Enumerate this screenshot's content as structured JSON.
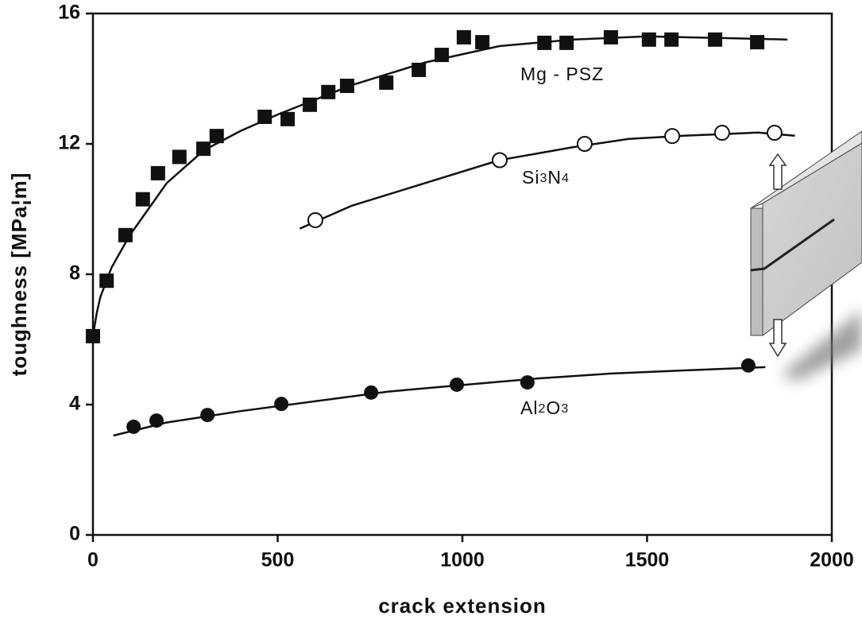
{
  "chart_data": {
    "type": "scatter",
    "x_label": "crack extension",
    "y_label": "toughness [MPa¦m]",
    "xlim": [
      0,
      2000
    ],
    "ylim": [
      0,
      16
    ],
    "xticks": [
      0,
      500,
      1000,
      1500,
      2000
    ],
    "yticks": [
      0,
      4,
      8,
      12,
      16
    ],
    "grid": false,
    "series": [
      {
        "name": "Mg - PSZ",
        "marker": "square",
        "color": "#111111",
        "x": [
          0,
          37,
          88,
          135,
          176,
          234,
          299,
          335,
          465,
          527,
          587,
          637,
          688,
          794,
          882,
          944,
          1004,
          1054,
          1222,
          1282,
          1402,
          1505,
          1566,
          1684,
          1798
        ],
        "values": [
          6.1,
          7.8,
          9.2,
          10.3,
          11.1,
          11.6,
          11.85,
          12.24,
          12.83,
          12.76,
          13.2,
          13.59,
          13.78,
          13.88,
          14.27,
          14.73,
          15.27,
          15.12,
          15.1,
          15.1,
          15.27,
          15.2,
          15.2,
          15.2,
          15.12
        ],
        "fit": {
          "x": [
            0,
            10,
            20,
            50,
            100,
            200,
            300,
            400,
            500,
            700,
            900,
            1100,
            1300,
            1500,
            1880
          ],
          "values": [
            6.1,
            6.8,
            7.3,
            8.2,
            9.2,
            10.8,
            11.8,
            12.4,
            12.9,
            13.8,
            14.5,
            15.0,
            15.2,
            15.3,
            15.2
          ]
        }
      },
      {
        "name": "Si3N4",
        "marker": "open-circle",
        "color": "#111111",
        "x": [
          602,
          1101,
          1331,
          1568,
          1703,
          1845
        ],
        "values": [
          9.66,
          11.5,
          12.0,
          12.24,
          12.34,
          12.34
        ],
        "fit": {
          "x": [
            560,
            700,
            900,
            1100,
            1300,
            1450,
            1600,
            1800,
            1900
          ],
          "values": [
            9.4,
            10.1,
            10.8,
            11.5,
            11.9,
            12.15,
            12.25,
            12.35,
            12.25
          ]
        }
      },
      {
        "name": "Al2O3",
        "marker": "filled-circle",
        "color": "#111111",
        "x": [
          110,
          172,
          310,
          510,
          753,
          985,
          1176,
          1774
        ],
        "values": [
          3.32,
          3.51,
          3.68,
          4.02,
          4.37,
          4.61,
          4.68,
          5.2
        ],
        "fit": {
          "x": [
            55,
            200,
            400,
            600,
            800,
            1000,
            1200,
            1400,
            1600,
            1820
          ],
          "values": [
            3.05,
            3.45,
            3.8,
            4.1,
            4.4,
            4.6,
            4.8,
            4.95,
            5.05,
            5.15
          ]
        }
      }
    ]
  }
}
